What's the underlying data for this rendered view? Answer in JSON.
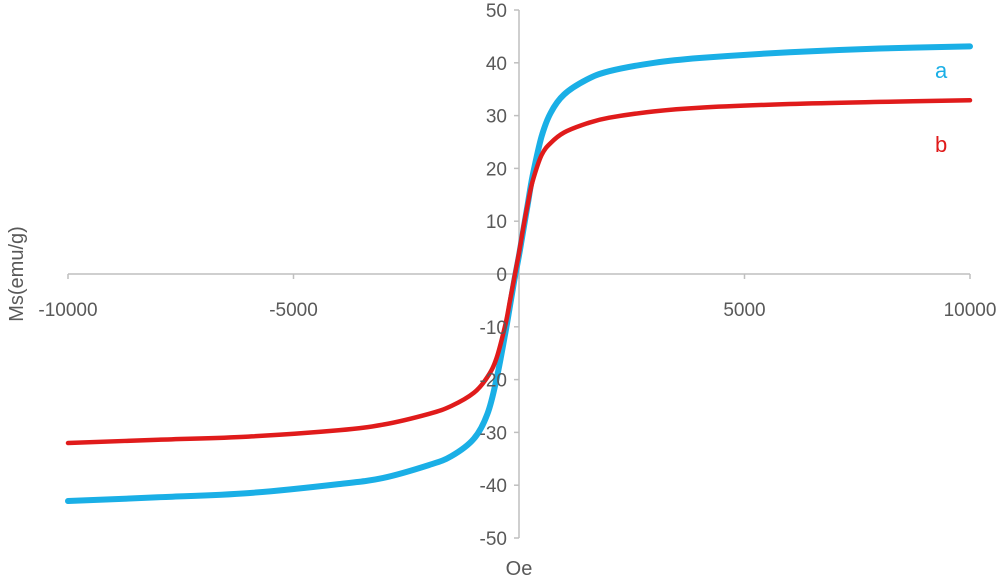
{
  "chart_data": {
    "type": "line",
    "title": "",
    "xlabel": "Oe",
    "ylabel": "Ms(emu/g)",
    "xlim": [
      -10000,
      10000
    ],
    "ylim": [
      -50,
      50
    ],
    "x_ticks": [
      -10000,
      -5000,
      0,
      5000,
      10000
    ],
    "x_tick_labels": [
      "-10000",
      "-5000",
      "",
      "5000",
      "10000"
    ],
    "y_ticks": [
      -50,
      -40,
      -30,
      -20,
      -10,
      0,
      10,
      20,
      30,
      40,
      50
    ],
    "y_tick_labels": [
      "-50",
      "-40",
      "-30",
      "-20",
      "-10",
      "0",
      "10",
      "20",
      "30",
      "40",
      "50"
    ],
    "grid": false,
    "series": [
      {
        "name": "a",
        "color": "#1aafe6",
        "x": [
          -10000,
          -8000,
          -6000,
          -4000,
          -3000,
          -2000,
          -1500,
          -1000,
          -700,
          -500,
          -300,
          -200,
          -100,
          0,
          100,
          200,
          300,
          500,
          700,
          1000,
          1500,
          2000,
          3000,
          4000,
          6000,
          8000,
          10000
        ],
        "y": [
          -43.0,
          -42.3,
          -41.5,
          -39.8,
          -38.6,
          -36.2,
          -34.5,
          -31.2,
          -26.5,
          -20.0,
          -11.0,
          -6.0,
          -1.0,
          3.5,
          8.5,
          13.5,
          18.5,
          26.0,
          30.5,
          34.0,
          36.8,
          38.4,
          40.0,
          40.9,
          42.0,
          42.7,
          43.1
        ]
      },
      {
        "name": "b",
        "color": "#e01b1b",
        "x": [
          -10000,
          -8000,
          -6000,
          -4000,
          -3000,
          -2000,
          -1500,
          -1000,
          -700,
          -500,
          -300,
          -200,
          -100,
          0,
          100,
          200,
          300,
          500,
          700,
          1000,
          1500,
          2000,
          3000,
          4000,
          6000,
          8000,
          10000
        ],
        "y": [
          -32.0,
          -31.4,
          -30.8,
          -29.6,
          -28.5,
          -26.5,
          -25.0,
          -22.5,
          -19.5,
          -16.0,
          -9.5,
          -5.0,
          -0.5,
          4.0,
          9.0,
          13.5,
          17.5,
          22.5,
          24.8,
          26.8,
          28.5,
          29.6,
          30.8,
          31.5,
          32.2,
          32.6,
          32.9
        ]
      }
    ]
  }
}
